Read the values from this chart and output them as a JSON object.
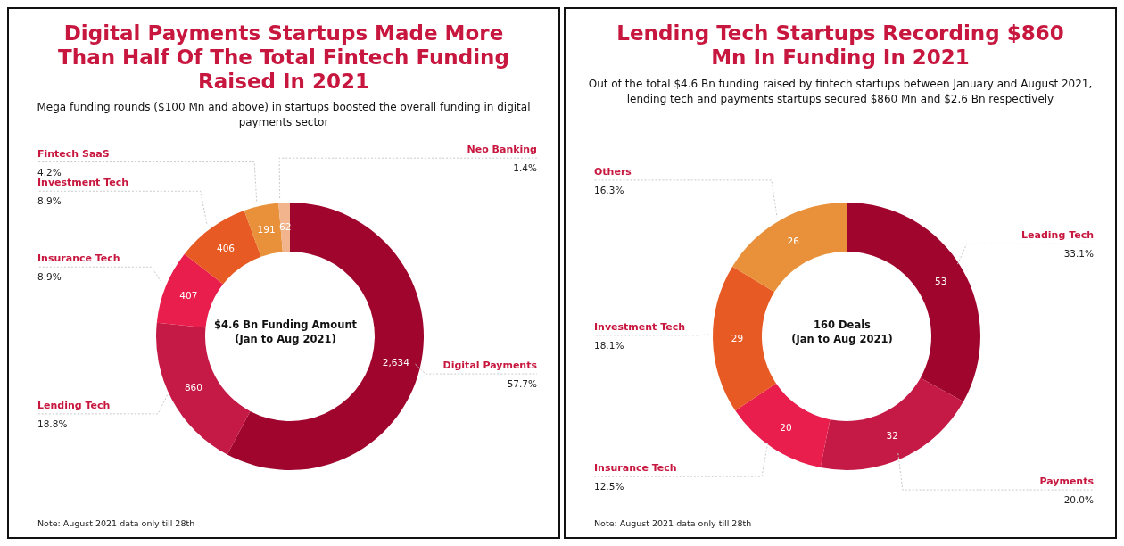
{
  "chart_data": [
    {
      "type": "donut",
      "title": "Digital Payments Startups Made More Than Half Of The Total Fintech Funding Raised In 2021",
      "subtitle": "Mega funding rounds ($100 Mn and above) in startups boosted the overall funding in digital payments sector",
      "categories": [
        "Digital Payments",
        "Lending Tech",
        "Insurance Tech",
        "Investment Tech",
        "Fintech SaaS",
        "Neo Banking"
      ],
      "values": [
        2634,
        860,
        407,
        406,
        191,
        62
      ],
      "colors": [
        "#a0052d",
        "#c41a45",
        "#e91e4c",
        "#e85a24",
        "#e8913a",
        "#f1b48c"
      ],
      "value_labels": [
        "2,634",
        "860",
        "407",
        "406",
        "191",
        "62"
      ],
      "annotations": [
        "$4.6 Bn Funding Amount",
        "(Jan to Aug 2021)",
        "Note: August 2021 data only till 28th",
        {
          "text": "57.7%",
          "x": "Digital Payments"
        },
        {
          "text": "18.8%",
          "x": "Lending Tech"
        },
        {
          "text": "8.9%",
          "x": "Insurance Tech"
        },
        {
          "text": "8.9%",
          "x": "Investment Tech"
        },
        {
          "text": "4.2%",
          "x": "Fintech SaaS"
        },
        {
          "text": "1.4%",
          "x": "Neo Banking"
        }
      ]
    },
    {
      "type": "donut",
      "title": "Lending Tech Startups Recording $860 Mn In Funding In 2021",
      "subtitle": "Out of the total $4.6 Bn funding raised by fintech startups between January and August 2021, lending tech and payments startups secured $860 Mn and $2.6 Bn respectively",
      "categories": [
        "Leading Tech",
        "Payments",
        "Insurance Tech",
        "Investment Tech",
        "Others"
      ],
      "values": [
        53,
        32,
        20,
        29,
        26
      ],
      "colors": [
        "#a0052d",
        "#c41a45",
        "#e91e4c",
        "#e85a24",
        "#e8913a"
      ],
      "value_labels": [
        "53",
        "32",
        "20",
        "29",
        "26"
      ],
      "annotations": [
        "160 Deals",
        "(Jan to Aug 2021)",
        "Note: August 2021 data only till 28th",
        {
          "text": "33.1%",
          "x": "Leading Tech"
        },
        {
          "text": "20.0%",
          "x": "Payments"
        },
        {
          "text": "12.5%",
          "x": "Insurance Tech"
        },
        {
          "text": "18.1%",
          "x": "Investment Tech"
        },
        {
          "text": "16.3%",
          "x": "Others"
        }
      ]
    }
  ]
}
